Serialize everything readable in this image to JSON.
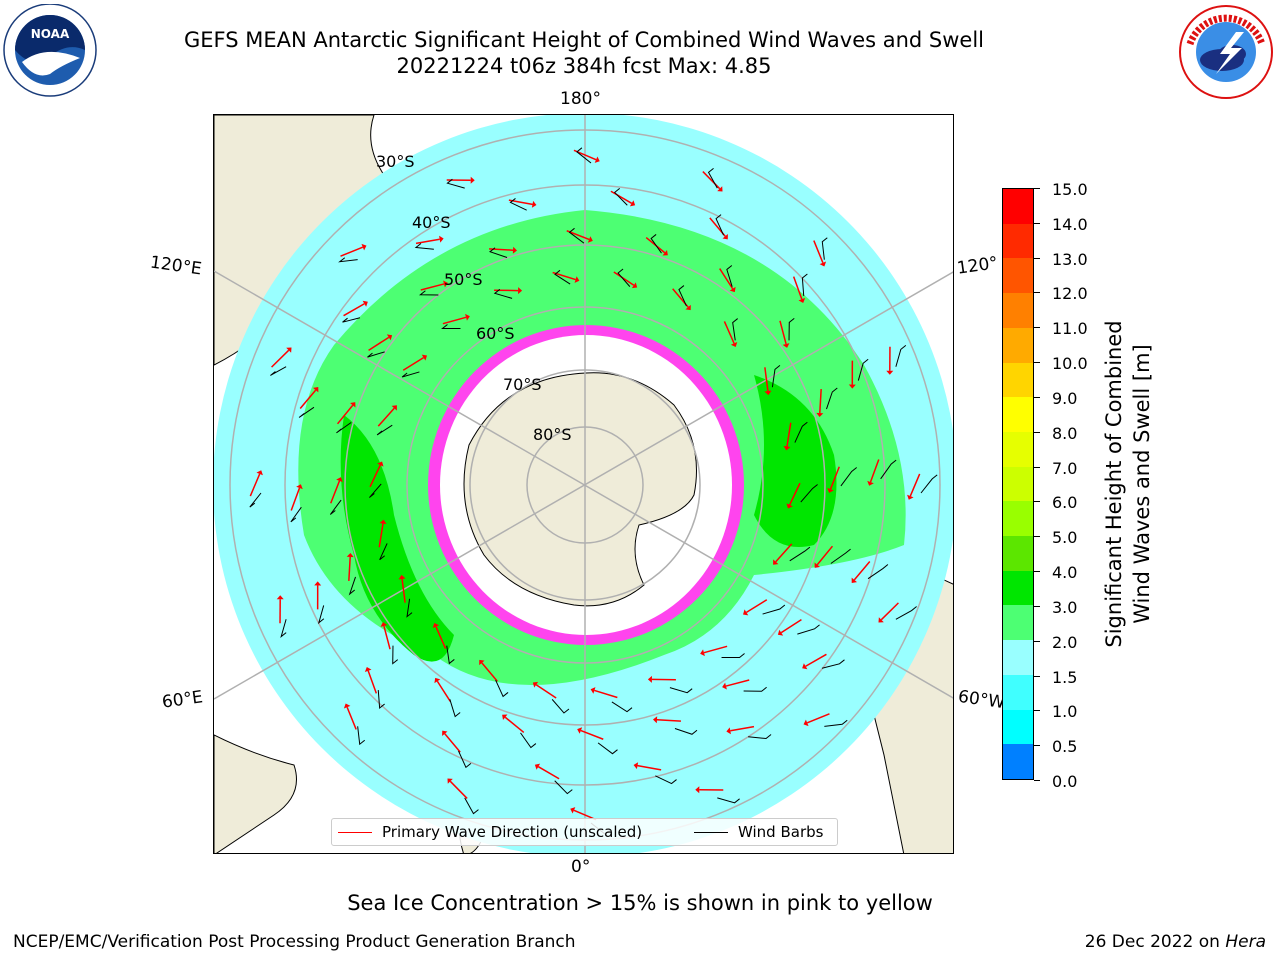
{
  "header": {
    "title_line1": "GEFS MEAN Antarctic Significant Height of Combined Wind Waves and Swell",
    "title_line2": "20221224 t06z 384h fcst   Max: 4.85",
    "left_logo": "noaa-logo",
    "right_logo": "nws-logo"
  },
  "map": {
    "projection": "south-polar-stereographic",
    "longitude_labels": {
      "top": "180°",
      "bottom": "0°",
      "left_upper": "120°E",
      "left_lower": "60°E",
      "right_upper": "120°",
      "right_lower": "60°W"
    },
    "latitude_labels": [
      "30°S",
      "40°S",
      "50°S",
      "60°S",
      "70°S",
      "80°S"
    ],
    "colors": {
      "land": "#efecd9",
      "ocean_low": "#99ffff",
      "band_3_4": "#4dff73",
      "band_4_5": "#00e600",
      "ice_edge": "#ff44ee",
      "ice_core": "#ffffff",
      "graticule": "#b0b0b0"
    }
  },
  "legend": {
    "items": [
      {
        "label": "Primary Wave Direction (unscaled)",
        "color": "#ff0000"
      },
      {
        "label": "Wind Barbs",
        "color": "#000000"
      }
    ]
  },
  "colorbar": {
    "label_line1": "Significant Height of Combined",
    "label_line2": "Wind Waves and Swell [m]",
    "ticks": [
      "15.0",
      "14.0",
      "13.0",
      "12.0",
      "11.0",
      "10.0",
      "9.0",
      "8.0",
      "7.0",
      "6.0",
      "5.0",
      "4.0",
      "3.0",
      "2.0",
      "1.5",
      "1.0",
      "0.5",
      "0.0"
    ],
    "colors_top_to_bottom": [
      "#ff0000",
      "#ff2a00",
      "#ff5500",
      "#ff8000",
      "#ffaa00",
      "#ffd500",
      "#ffff00",
      "#e6ff00",
      "#ccff00",
      "#99ff00",
      "#5ce600",
      "#00e600",
      "#4dff73",
      "#99ffff",
      "#40ffff",
      "#00ffff",
      "#0080ff",
      "#0000ff"
    ]
  },
  "footer": {
    "note": "Sea Ice Concentration > 15% is shown in pink to yellow",
    "left": "NCEP/EMC/Verification Post Processing Product Generation Branch",
    "right_date": "26 Dec 2022 on ",
    "right_host": "Hera"
  }
}
